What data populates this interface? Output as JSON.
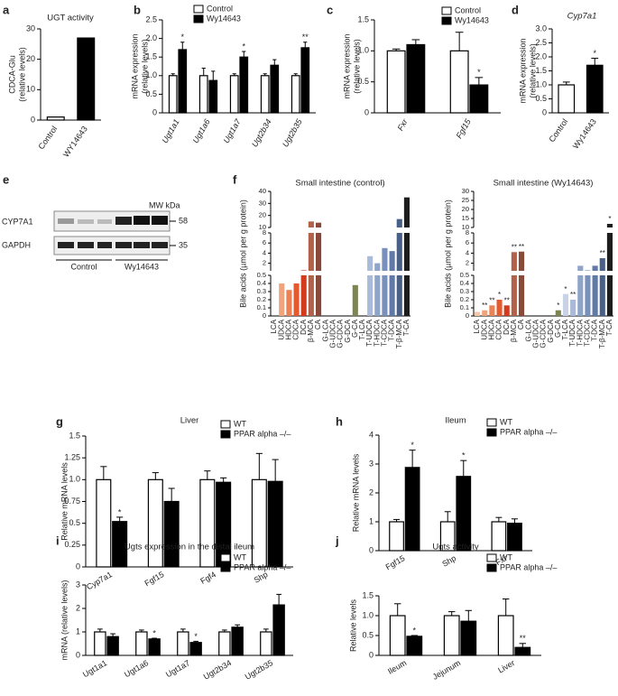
{
  "blot": {
    "panel": "e",
    "rows": [
      "CYP7A1",
      "GAPDH"
    ],
    "mw_header": "MW kDa",
    "mw": [
      "58",
      "35"
    ],
    "groups": [
      "Control",
      "Wy14643"
    ]
  },
  "chart_data": [
    {
      "type": "bar",
      "panel": "a",
      "title": "UGT activity",
      "ylabel": [
        "CDCA-Glu",
        "(relative levels)"
      ],
      "categories": [
        "Control",
        "WY14643"
      ],
      "values": [
        1,
        27
      ],
      "colors": [
        "#ffffff",
        "#000000"
      ],
      "ylim": [
        0,
        30
      ],
      "yticks": [
        0,
        10,
        20,
        30
      ]
    },
    {
      "type": "bar",
      "panel": "b",
      "ylabel": [
        "mRNA expression",
        "(relative levels)"
      ],
      "categories": [
        "Ugt1a1",
        "Ugt1a6",
        "Ugt1a7",
        "Ugt2b34",
        "Ugt2b35"
      ],
      "series": [
        {
          "name": "Control",
          "color": "#ffffff",
          "values": [
            1,
            1,
            1,
            1,
            1
          ],
          "errors": [
            0.05,
            0.2,
            0.05,
            0.05,
            0.05
          ]
        },
        {
          "name": "Wy14643",
          "color": "#000000",
          "values": [
            1.7,
            0.87,
            1.5,
            1.28,
            1.75
          ],
          "errors": [
            0.2,
            0.25,
            0.15,
            0.15,
            0.15
          ],
          "significance": [
            "*",
            null,
            "*",
            null,
            "**"
          ]
        }
      ],
      "ylim": [
        0,
        2.5
      ],
      "yticks": [
        0,
        0.5,
        {
          "value": 1,
          "label": "1.0"
        },
        1.5,
        {
          "value": 2,
          "label": "2.0"
        },
        2.5
      ]
    },
    {
      "type": "bar",
      "panel": "c",
      "ylabel": [
        "mRNA expression",
        "(relative levels)"
      ],
      "categories": [
        "Fxr",
        "Fgf15"
      ],
      "series": [
        {
          "name": "Control",
          "color": "#ffffff",
          "values": [
            1,
            1
          ],
          "errors": [
            0.03,
            0.3
          ]
        },
        {
          "name": "Wy14643",
          "color": "#000000",
          "values": [
            1.1,
            0.45
          ],
          "errors": [
            0.08,
            0.12
          ],
          "significance": [
            null,
            "*"
          ]
        }
      ],
      "ylim": [
        0,
        1.5
      ],
      "yticks": [
        0,
        0.5,
        {
          "value": 1,
          "label": "1.0"
        },
        1.5
      ]
    },
    {
      "type": "bar",
      "panel": "d",
      "title": "Cyp7a1",
      "ylabel": [
        "mRNA expression",
        "(relative levels)"
      ],
      "categories": [
        "Control",
        "Wy14643"
      ],
      "values": [
        1,
        1.7
      ],
      "errors": [
        0.1,
        0.25
      ],
      "significance": [
        null,
        "*"
      ],
      "colors": [
        "#ffffff",
        "#000000"
      ],
      "ylim": [
        0,
        3
      ],
      "yticks": [
        0,
        0.5,
        {
          "value": 1,
          "label": "1.0"
        },
        1.5,
        {
          "value": 2,
          "label": "2.0"
        },
        2.5,
        {
          "value": 3,
          "label": "3.0"
        }
      ]
    },
    {
      "type": "broken-bar",
      "panel": "f",
      "title": "Small intestine (control)",
      "ylabel": [
        "Bile acids (µmol per g protein)"
      ],
      "categories": [
        "LCA",
        "UDCA",
        "HDCA",
        "CDCA",
        "DCA",
        "β-MCA",
        "CA",
        "G-LCA",
        "G-UDCA",
        "G-CDCA",
        "G-DCA",
        "G-CA",
        "T-LCA",
        "T-UDCA",
        "T-HDCA",
        "T-CDCA",
        "T-DCA",
        "T-β-MCA",
        "T-CA"
      ],
      "values": [
        0,
        0.4,
        0.32,
        0.4,
        0.6,
        15,
        14,
        0,
        0,
        0,
        0,
        0.38,
        0,
        3.4,
        2,
        5,
        4.4,
        17,
        35
      ],
      "colors": [
        "#f4c7a8",
        "#f0a47c",
        "#ec8155",
        "#e45a2e",
        "#d43a1c",
        "#b0624a",
        "#8a4a3a",
        "#a9b07a",
        "#a9b07a",
        "#a9b07a",
        "#a9b07a",
        "#7d8553",
        "#c9d3e6",
        "#a9bbd8",
        "#8ea4c9",
        "#7890bb",
        "#6079a6",
        "#4a5f86",
        "#1d1d1d"
      ],
      "segments": [
        {
          "ylim": [
            0,
            0.5
          ],
          "yticks": [
            0,
            0.1,
            0.2,
            0.3,
            0.4,
            0.5
          ]
        },
        {
          "ylim": [
            0.5,
            8
          ],
          "yticks": [
            2,
            4,
            6,
            8
          ]
        },
        {
          "ylim": [
            10,
            40
          ],
          "yticks": [
            10,
            20,
            30,
            40
          ]
        }
      ]
    },
    {
      "type": "broken-bar",
      "title": "Small intestine (Wy14643)",
      "ylabel": [
        "Bile acids (µmol per g protein)"
      ],
      "categories": [
        "LCA",
        "UDCA",
        "HDCA",
        "CDCA",
        "DCA",
        "β-MCA",
        "CA",
        "G-LCA",
        "G-UDCA",
        "G-CDCA",
        "G-DCA",
        "G-CA",
        "T-LCA",
        "T-UDCA",
        "T-HDCA",
        "T-CDCA",
        "T-DCA",
        "T-β-MCA",
        "T-CA"
      ],
      "values": [
        0.05,
        0.07,
        0.13,
        0.2,
        0.13,
        4.2,
        4.3,
        0,
        0,
        0,
        0,
        0.07,
        0.27,
        0.2,
        1.5,
        0.6,
        1.5,
        3,
        12
      ],
      "significance": [
        null,
        "**",
        "**",
        "*",
        "**",
        "**",
        "**",
        null,
        null,
        null,
        null,
        "*",
        "*",
        "**",
        null,
        null,
        null,
        "**",
        "*"
      ],
      "colors": [
        "#f4c7a8",
        "#f0a47c",
        "#ec8155",
        "#e45a2e",
        "#d43a1c",
        "#b0624a",
        "#8a4a3a",
        "#a9b07a",
        "#a9b07a",
        "#a9b07a",
        "#a9b07a",
        "#7d8553",
        "#c9d3e6",
        "#a9bbd8",
        "#8ea4c9",
        "#7890bb",
        "#6079a6",
        "#4a5f86",
        "#1d1d1d"
      ],
      "segments": [
        {
          "ylim": [
            0,
            0.5
          ],
          "yticks": [
            0,
            0.1,
            0.2,
            0.3,
            0.4,
            0.5
          ]
        },
        {
          "ylim": [
            0.5,
            8
          ],
          "yticks": [
            2,
            4,
            6,
            8
          ]
        },
        {
          "ylim": [
            10,
            30
          ],
          "yticks": [
            10,
            15,
            20,
            25,
            30
          ]
        }
      ]
    },
    {
      "type": "bar",
      "panel": "g",
      "title": "Liver",
      "ylabel": [
        "Relative mRNA levels"
      ],
      "categories": [
        "Cyp7a1",
        "Fgf15",
        "Fgf4",
        "Shp"
      ],
      "series": [
        {
          "name": "WT",
          "color": "#ffffff",
          "values": [
            1,
            1,
            1,
            1
          ],
          "errors": [
            0.15,
            0.08,
            0.1,
            0.3
          ]
        },
        {
          "name": "PPAR alpha –/–",
          "color": "#000000",
          "values": [
            0.52,
            0.75,
            0.97,
            0.98
          ],
          "errors": [
            0.05,
            0.15,
            0.05,
            0.25
          ],
          "significance": [
            "*",
            null,
            null,
            null
          ]
        }
      ],
      "ylim": [
        0,
        1.5
      ],
      "yticks": [
        0,
        0.25,
        0.5,
        0.75,
        {
          "value": 1,
          "label": "1.0"
        },
        1.25,
        1.5
      ]
    },
    {
      "type": "bar",
      "panel": "h",
      "title": "Ileum",
      "ylabel": [
        "Relative mRNA levels"
      ],
      "categories": [
        "Fgf15",
        "Shp",
        "Fxr"
      ],
      "series": [
        {
          "name": "WT",
          "color": "#ffffff",
          "values": [
            1,
            1,
            1
          ],
          "errors": [
            0.08,
            0.35,
            0.15
          ]
        },
        {
          "name": "PPAR alpha –/–",
          "color": "#000000",
          "values": [
            2.88,
            2.57,
            0.95
          ],
          "errors": [
            0.6,
            0.55,
            0.15
          ],
          "significance": [
            "*",
            "*",
            null
          ]
        }
      ],
      "ylim": [
        0,
        4
      ],
      "yticks": [
        0,
        1,
        2,
        3,
        4
      ]
    },
    {
      "type": "bar",
      "panel": "i",
      "title": "Ugts expression in the distal ileum",
      "ylabel": [
        "mRNA (relative levels)"
      ],
      "categories": [
        "Ugt1a1",
        "Ugt1a6",
        "Ugt1a7",
        "Ugt2b34",
        "Ugt2b35"
      ],
      "series": [
        {
          "name": "WT",
          "color": "#ffffff",
          "values": [
            1,
            1,
            1,
            1,
            1
          ],
          "errors": [
            0.12,
            0.08,
            0.12,
            0.08,
            0.12
          ]
        },
        {
          "name": "PPAR alpha –/–",
          "color": "#000000",
          "values": [
            0.8,
            0.7,
            0.55,
            1.2,
            2.15
          ],
          "errors": [
            0.12,
            0.03,
            0.05,
            0.1,
            0.45
          ],
          "significance": [
            null,
            "*",
            "*",
            null,
            null
          ]
        }
      ],
      "ylim": [
        0,
        3
      ],
      "yticks": [
        0,
        1,
        2,
        3
      ]
    },
    {
      "type": "bar",
      "panel": "j",
      "title": "Ugts activity",
      "ylabel": [
        "Relative levels"
      ],
      "categories": [
        "Ileum",
        "Jejunum",
        "Liver"
      ],
      "series": [
        {
          "name": "WT",
          "color": "#ffffff",
          "values": [
            1,
            1,
            1
          ],
          "errors": [
            0.3,
            0.1,
            0.42
          ]
        },
        {
          "name": "PPAR alpha –/–",
          "color": "#000000",
          "values": [
            0.48,
            0.86,
            0.2
          ],
          "errors": [
            0.02,
            0.27,
            0.1
          ],
          "significance": [
            "*",
            null,
            "**"
          ]
        }
      ],
      "ylim": [
        0,
        1.5
      ],
      "yticks": [
        0,
        0.5,
        {
          "value": 1,
          "label": "1.0"
        },
        1.5
      ]
    }
  ]
}
